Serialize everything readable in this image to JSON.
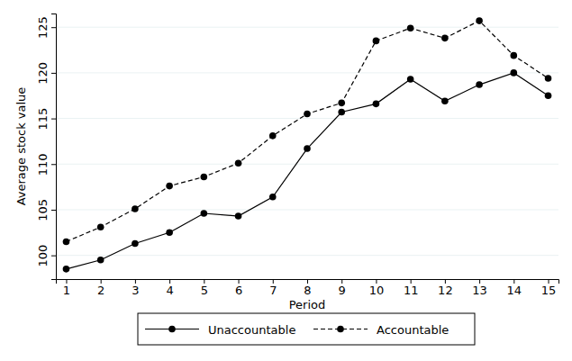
{
  "chart_data": {
    "type": "line",
    "x_label": "Period",
    "y_label": "Average stock value",
    "x": [
      1,
      2,
      3,
      4,
      5,
      6,
      7,
      8,
      9,
      10,
      11,
      12,
      13,
      14,
      15
    ],
    "series": [
      {
        "name": "Unaccountable",
        "color": "#000000",
        "line_style": "solid",
        "marker": "circle",
        "values": [
          98.5,
          99.5,
          101.3,
          102.5,
          104.6,
          104.3,
          106.4,
          111.7,
          115.7,
          116.6,
          119.3,
          116.9,
          118.7,
          120.0,
          117.5
        ]
      },
      {
        "name": "Accountable",
        "color": "#000000",
        "line_style": "dashed",
        "marker": "circle",
        "values": [
          101.5,
          103.1,
          105.1,
          107.6,
          108.6,
          110.1,
          113.1,
          115.5,
          116.7,
          123.5,
          124.9,
          123.8,
          125.7,
          121.9,
          119.4
        ]
      }
    ],
    "xlim": [
      0.7,
      15.3
    ],
    "xticks": [
      1,
      2,
      3,
      4,
      5,
      6,
      7,
      8,
      9,
      10,
      11,
      12,
      13,
      14,
      15
    ],
    "ylim": [
      97.4,
      126.5
    ],
    "yticks": [
      100,
      105,
      110,
      115,
      120,
      125
    ],
    "grid": true,
    "legend": "bottom"
  }
}
